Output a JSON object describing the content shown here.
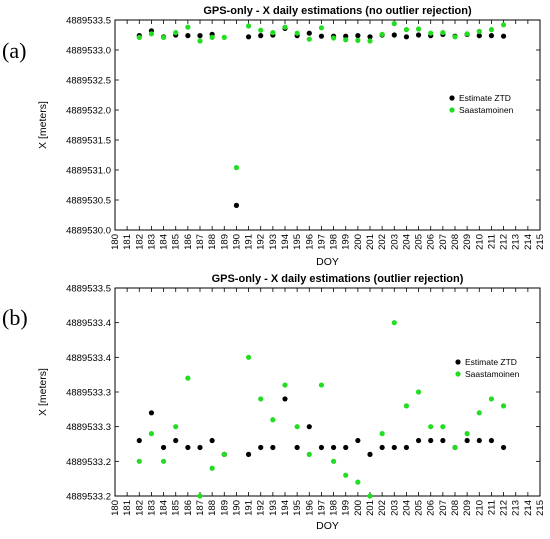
{
  "panels": [
    {
      "label": "(a)"
    },
    {
      "label": "(b)"
    }
  ],
  "chart_data": [
    {
      "type": "scatter",
      "title": "GPS-only   -   X daily estimations (no outlier rejection)",
      "xlabel": "DOY",
      "ylabel": "X [meters]",
      "xlim": [
        180,
        215
      ],
      "ylim": [
        4889530.0,
        4889533.5
      ],
      "xticks": [
        180,
        181,
        182,
        183,
        184,
        185,
        186,
        187,
        188,
        189,
        190,
        191,
        192,
        193,
        194,
        195,
        196,
        197,
        198,
        199,
        200,
        201,
        202,
        203,
        204,
        205,
        206,
        207,
        208,
        209,
        210,
        211,
        212,
        213,
        214,
        215
      ],
      "yticks": [
        4889530.0,
        4889530.5,
        4889531.0,
        4889531.5,
        4889532.0,
        4889532.5,
        4889533.0,
        4889533.5
      ],
      "ytick_labels": [
        "4889530.0",
        "4889530.5",
        "4889531.0",
        "4889531.5",
        "4889532.0",
        "4889532.5",
        "4889533.0",
        "4889533.5"
      ],
      "grid": false,
      "legend_position": "right",
      "series": [
        {
          "name": "Estimate ZTD",
          "color": "#000000",
          "x": [
            182,
            183,
            184,
            185,
            186,
            187,
            188,
            190,
            191,
            192,
            193,
            194,
            195,
            196,
            197,
            198,
            199,
            200,
            201,
            202,
            203,
            204,
            205,
            206,
            207,
            208,
            209,
            210,
            211,
            212
          ],
          "y": [
            4889533.24,
            4889533.32,
            4889533.22,
            4889533.25,
            4889533.24,
            4889533.24,
            4889533.26,
            4889530.41,
            4889533.22,
            4889533.24,
            4889533.25,
            4889533.36,
            4889533.24,
            4889533.28,
            4889533.23,
            4889533.23,
            4889533.23,
            4889533.24,
            4889533.22,
            4889533.25,
            4889533.25,
            4889533.22,
            4889533.25,
            4889533.24,
            4889533.26,
            4889533.23,
            4889533.26,
            4889533.24,
            4889533.24,
            4889533.23
          ]
        },
        {
          "name": "Saastamoinen",
          "color": "#22dd22",
          "x": [
            182,
            183,
            184,
            185,
            186,
            187,
            188,
            189,
            190,
            191,
            192,
            193,
            194,
            195,
            196,
            197,
            198,
            199,
            200,
            201,
            202,
            203,
            204,
            205,
            206,
            207,
            208,
            209,
            210,
            211,
            212
          ],
          "y": [
            4889533.21,
            4889533.27,
            4889533.21,
            4889533.29,
            4889533.38,
            4889533.15,
            4889533.21,
            4889533.21,
            4889531.04,
            4889533.4,
            4889533.33,
            4889533.29,
            4889533.38,
            4889533.28,
            4889533.18,
            4889533.37,
            4889533.2,
            4889533.17,
            4889533.16,
            4889533.15,
            4889533.26,
            4889533.44,
            4889533.34,
            4889533.35,
            4889533.28,
            4889533.29,
            4889533.22,
            4889533.27,
            4889533.31,
            4889533.34,
            4889533.42
          ]
        }
      ]
    },
    {
      "type": "scatter",
      "title": "GPS-only   -   X daily estimations (outlier rejection)",
      "xlabel": "DOY",
      "ylabel": "X [meters]",
      "xlim": [
        180,
        215
      ],
      "ylim": [
        4889533.2,
        4889533.5
      ],
      "xticks": [
        180,
        181,
        182,
        183,
        184,
        185,
        186,
        187,
        188,
        189,
        190,
        191,
        192,
        193,
        194,
        195,
        196,
        197,
        198,
        199,
        200,
        201,
        202,
        203,
        204,
        205,
        206,
        207,
        208,
        209,
        210,
        211,
        212,
        213,
        214,
        215
      ],
      "yticks": [
        4889533.2,
        4889533.25,
        4889533.3,
        4889533.35,
        4889533.4,
        4889533.45,
        4889533.5
      ],
      "ytick_labels": [
        "4889533.2",
        "4889533.2",
        "4889533.3",
        "4889533.3",
        "4889533.4",
        "4889533.4",
        "4889533.5"
      ],
      "grid": false,
      "legend_position": "right",
      "series": [
        {
          "name": "Estimate ZTD",
          "color": "#000000",
          "x": [
            182,
            183,
            184,
            185,
            186,
            187,
            188,
            189,
            191,
            192,
            193,
            194,
            195,
            196,
            197,
            198,
            199,
            200,
            201,
            202,
            203,
            204,
            205,
            206,
            207,
            208,
            209,
            210,
            211,
            212
          ],
          "y": [
            4889533.28,
            4889533.32,
            4889533.27,
            4889533.28,
            4889533.27,
            4889533.27,
            4889533.28,
            4889533.26,
            4889533.26,
            4889533.27,
            4889533.27,
            4889533.34,
            4889533.27,
            4889533.3,
            4889533.27,
            4889533.27,
            4889533.27,
            4889533.28,
            4889533.26,
            4889533.27,
            4889533.27,
            4889533.27,
            4889533.28,
            4889533.28,
            4889533.28,
            4889533.27,
            4889533.28,
            4889533.28,
            4889533.28,
            4889533.27
          ]
        },
        {
          "name": "Saastamoinen",
          "color": "#22dd22",
          "x": [
            182,
            183,
            184,
            185,
            186,
            187,
            188,
            189,
            191,
            192,
            193,
            194,
            195,
            196,
            197,
            198,
            199,
            200,
            201,
            202,
            203,
            204,
            205,
            206,
            207,
            208,
            209,
            210,
            211,
            212
          ],
          "y": [
            4889533.25,
            4889533.29,
            4889533.25,
            4889533.3,
            4889533.37,
            4889533.2,
            4889533.24,
            4889533.26,
            4889533.4,
            4889533.34,
            4889533.31,
            4889533.36,
            4889533.3,
            4889533.26,
            4889533.36,
            4889533.25,
            4889533.23,
            4889533.22,
            4889533.2,
            4889533.29,
            4889533.45,
            4889533.33,
            4889533.35,
            4889533.3,
            4889533.3,
            4889533.27,
            4889533.29,
            4889533.32,
            4889533.34,
            4889533.33
          ]
        }
      ]
    }
  ]
}
